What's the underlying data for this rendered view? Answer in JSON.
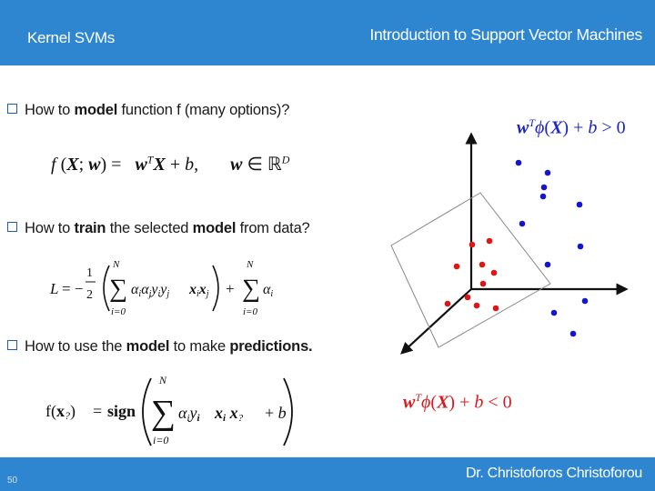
{
  "header": {
    "section": "Kernel SVMs",
    "title": "Introduction to Support Vector Machines"
  },
  "footer": {
    "page_number": "50",
    "author": "Dr. Christoforos Christoforou"
  },
  "bullets": [
    {
      "pre": "How to ",
      "bold1": "model",
      "post1": "  function f (many options)?",
      "bold2": "",
      "post2": ""
    },
    {
      "pre": "How to ",
      "bold1": "train",
      "post1": " the selected ",
      "bold2": "model",
      "post2": " from data?"
    },
    {
      "pre": "How to use the ",
      "bold1": "model",
      "post1": " to make ",
      "bold2": "predictions.",
      "post2": ""
    }
  ],
  "equations": {
    "model": "f (X; w) =  wᵀX + b,       w ∈ ℝᴰ",
    "train": "L = −½ Σ αᵢαⱼyᵢyⱼ xᵢxⱼ + Σ αᵢ",
    "predict": "f(x?) = sign( Σ αᵢyᵢ xᵢ x? + b )"
  },
  "diagram": {
    "positive_label": "wᵀφ(X) + b > 0",
    "negative_label": "wᵀφ(X) + b < 0",
    "positive_color": "#1515d0",
    "negative_color": "#e01515",
    "positive_points": 12,
    "negative_points": 10
  },
  "colors": {
    "bar": "#2E86D0",
    "positive": "#1a24c8",
    "negative": "#d8191f"
  }
}
